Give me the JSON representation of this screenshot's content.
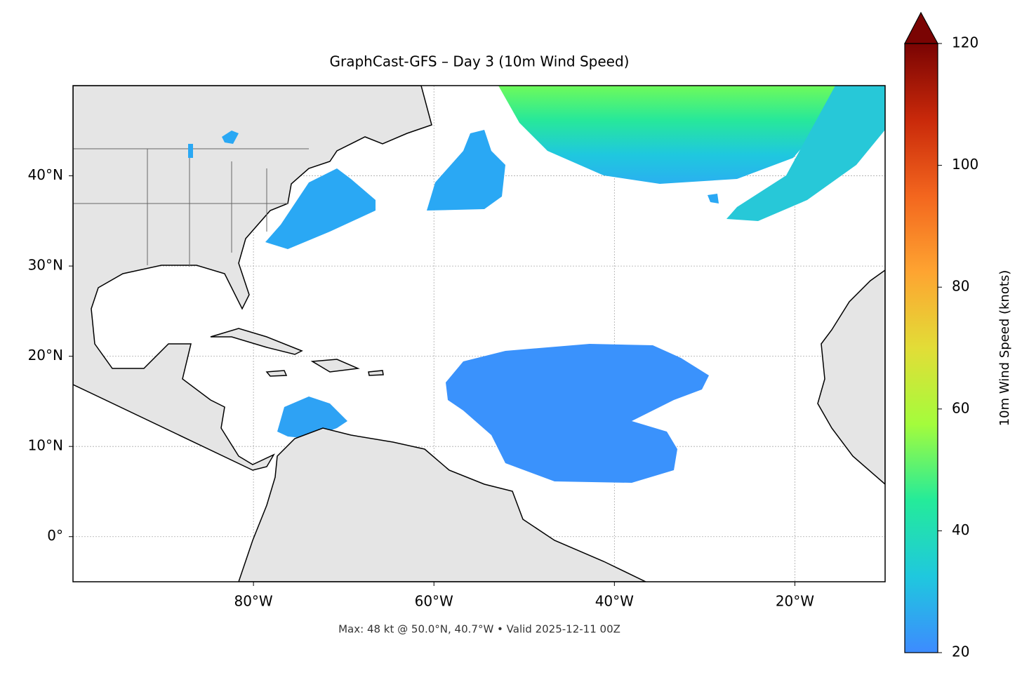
{
  "map": {
    "title": "GraphCast-GFS – Day 3 (10m Wind Speed)",
    "xlim": [
      -100,
      -10
    ],
    "ylim": [
      -5,
      50
    ],
    "xticks": [
      {
        "value": -80,
        "label": "80°W"
      },
      {
        "value": -60,
        "label": "60°W"
      },
      {
        "value": -40,
        "label": "40°W"
      },
      {
        "value": -20,
        "label": "20°W"
      }
    ],
    "yticks": [
      {
        "value": 0,
        "label": "0°"
      },
      {
        "value": 10,
        "label": "10°N"
      },
      {
        "value": 20,
        "label": "20°N"
      },
      {
        "value": 30,
        "label": "30°N"
      },
      {
        "value": 40,
        "label": "40°N"
      }
    ],
    "grid": true,
    "footer": "Max: 48 kt @ 50.0°N, 40.7°W • Valid 2025-12-11 00Z"
  },
  "colorbar": {
    "label": "10m Wind Speed (knots)",
    "lim": [
      20,
      120
    ],
    "ticks": [
      20,
      40,
      60,
      80,
      100,
      120
    ],
    "colors": [
      "#3d8bff",
      "#1fc8de",
      "#24eb9a",
      "#a4fc3c",
      "#e2dd37",
      "#fea431",
      "#f3661e",
      "#c9290a",
      "#7a0403"
    ]
  }
}
